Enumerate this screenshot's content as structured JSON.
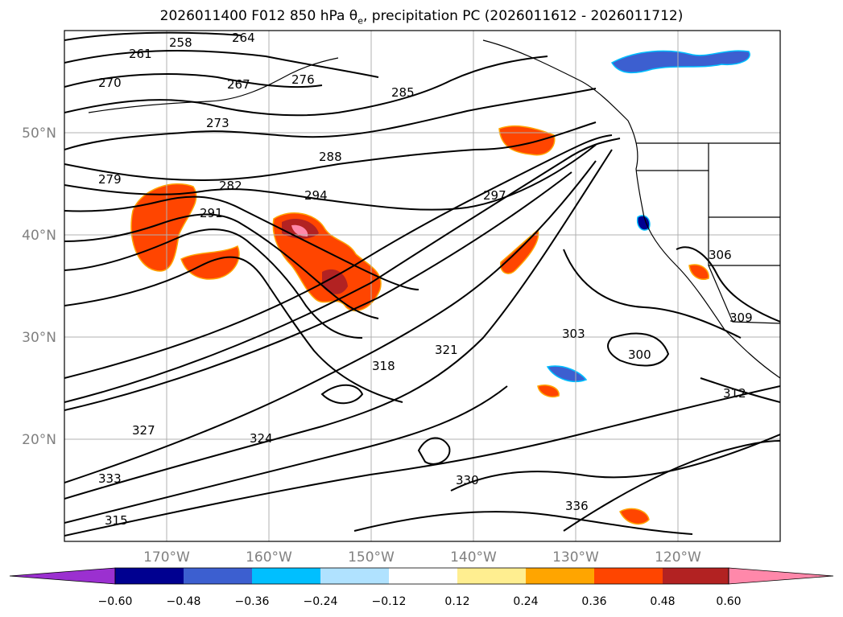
{
  "title": "2026011400 F012 850 hPa θ",
  "title_sub": "e",
  "title_rest": ", precipitation PC (2026011612 - 2026011712)",
  "lat_labels": [
    "50°N",
    "40°N",
    "30°N",
    "20°N"
  ],
  "lon_labels": [
    "170°W",
    "160°W",
    "150°W",
    "140°W",
    "130°W",
    "120°W"
  ],
  "colorbar": {
    "colors": [
      "#9b30d0",
      "#000090",
      "#3c5fd0",
      "#00bfff",
      "#b0e2ff",
      "#ffffff",
      "#ffee90",
      "#ffa500",
      "#ff4500",
      "#b22222",
      "#ff88aa"
    ],
    "ticks": [
      "−0.60",
      "−0.48",
      "−0.36",
      "−0.24",
      "−0.12",
      "0.12",
      "0.24",
      "0.36",
      "0.48",
      "0.60"
    ]
  },
  "contour_labels": [
    "258",
    "261",
    "264",
    "267",
    "270",
    "273",
    "276",
    "279",
    "282",
    "285",
    "288",
    "291",
    "294",
    "297",
    "300",
    "303",
    "306",
    "309",
    "312",
    "315",
    "318",
    "321",
    "324",
    "327",
    "330",
    "333",
    "336"
  ],
  "colors": {
    "contour": "#000000",
    "grid": "#b0b0b0",
    "coast": "#000000",
    "frame": "#000000"
  }
}
